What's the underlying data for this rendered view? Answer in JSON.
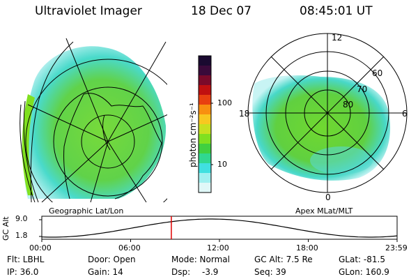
{
  "header": {
    "instrument": "Ultraviolet Imager",
    "date": "18 Dec 07",
    "time": "08:45:01 UT"
  },
  "left_panel": {
    "label": "Geographic Lat/Lon"
  },
  "right_panel": {
    "label": "Apex MLat/MLT",
    "mlt_labels": [
      "12",
      "18",
      "6",
      "0"
    ],
    "lat_labels": [
      "60",
      "70",
      "80"
    ]
  },
  "colorbar": {
    "unit_label": "photon cm⁻²s⁻¹",
    "ticks": [
      "100",
      "10"
    ],
    "colors": [
      "#1a0a30",
      "#3a0a3a",
      "#7a0a2a",
      "#c01010",
      "#e84010",
      "#f89010",
      "#f8c820",
      "#c8e020",
      "#80e020",
      "#40d040",
      "#30d890",
      "#40e0e0",
      "#a0f0f0",
      "#e0f8f8"
    ]
  },
  "altitude_plot": {
    "axis_label": "GC Alt",
    "y_ticks": [
      "9.0",
      "1.8"
    ],
    "x_ticks": [
      "00:00",
      "06:00",
      "12:00",
      "18:00",
      "23:59"
    ],
    "marker_time_hours": 8.75,
    "marker_color": "#e00000"
  },
  "info": {
    "filter": "Flt: LBHL",
    "ip": "IP: 36.0",
    "door": "Door: Open",
    "gain": "Gain: 14",
    "mode": "Mode: Normal",
    "dsp_label": "Dsp:",
    "dsp_value": "-3.9",
    "gc_alt": "GC Alt: 7.5 Re",
    "seq": "Seq: 39",
    "glat": "GLat: -81.5",
    "glon": "GLon: 160.9"
  }
}
